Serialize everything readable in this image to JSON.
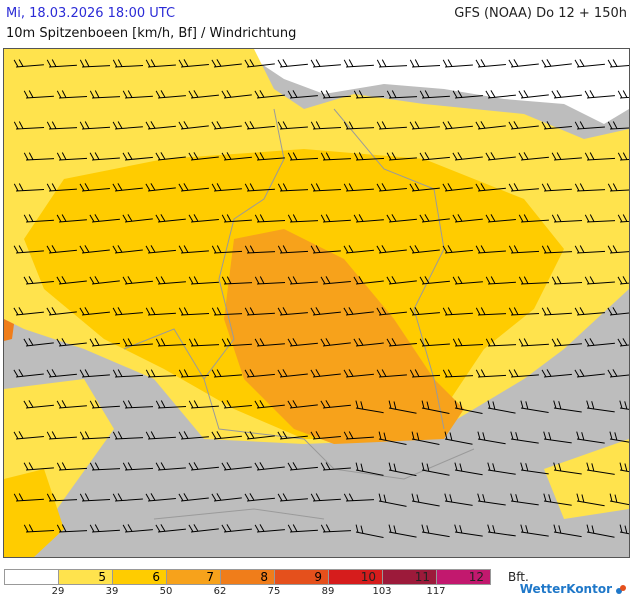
{
  "header": {
    "date": "Mi, 18.03.2026 18:00 UTC",
    "model": "GFS (NOAA) Do 12 + 150h",
    "parameter": "10m Spitzenboeen [km/h, Bf] / Windrichtung"
  },
  "legend": {
    "bft_labels": [
      "",
      "5",
      "6",
      "7",
      "8",
      "9",
      "10",
      "11",
      "12"
    ],
    "kmh_ticks": [
      "29",
      "39",
      "50",
      "62",
      "75",
      "89",
      "103",
      "117"
    ],
    "unit": "Bft.",
    "colors": [
      "#ffffff",
      "#ffe34d",
      "#ffcc00",
      "#f7a21b",
      "#f07d1a",
      "#e5501c",
      "#d61c1c",
      "#9c1a3a",
      "#c2186e"
    ]
  },
  "map": {
    "land_no_data_color": "#bdbdbd",
    "sea_color": "#ffffff",
    "border_color": "#9a9a9a",
    "barb_color": "#000000"
  },
  "brand": {
    "name": "WetterKontor",
    "icon": "wetterkontor-logo-icon"
  }
}
